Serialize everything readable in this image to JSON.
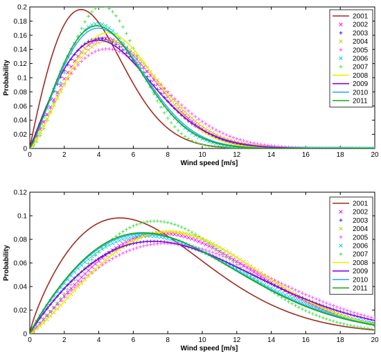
{
  "chart_data": [
    {
      "type": "line",
      "xlabel": "Wind speed [m/s]",
      "ylabel": "Probability",
      "xlim": [
        0,
        20
      ],
      "ylim": [
        0,
        0.2
      ],
      "xticks": [
        0,
        2,
        4,
        6,
        8,
        10,
        12,
        14,
        16,
        18,
        20
      ],
      "yticks": [
        0,
        0.02,
        0.04,
        0.06,
        0.08,
        0.1,
        0.12,
        0.14,
        0.16,
        0.18,
        0.2
      ],
      "legend_position": "top-right",
      "grid": false,
      "series": [
        {
          "name": "2001",
          "style": "line",
          "color": "#a0281e",
          "k": 1.95,
          "c": 4.3
        },
        {
          "name": "2002",
          "style": "marker-x",
          "color": "#ff00ff",
          "k": 2.15,
          "c": 5.8
        },
        {
          "name": "2003",
          "style": "marker-plus",
          "color": "#2222ee",
          "k": 2.05,
          "c": 5.6
        },
        {
          "name": "2004",
          "style": "marker-x",
          "color": "#cccc00",
          "k": 2.2,
          "c": 6.0
        },
        {
          "name": "2005",
          "style": "marker-plus",
          "color": "#ff44ff",
          "k": 2.05,
          "c": 6.2
        },
        {
          "name": "2006",
          "style": "marker-x",
          "color": "#00d0e0",
          "k": 2.2,
          "c": 5.2
        },
        {
          "name": "2007",
          "style": "marker-plus",
          "color": "#44dd44",
          "k": 2.55,
          "c": 5.1
        },
        {
          "name": "2008",
          "style": "line",
          "color": "#eeee00",
          "k": 2.3,
          "c": 5.8
        },
        {
          "name": "2009",
          "style": "line",
          "color": "#8800dd",
          "k": 2.0,
          "c": 5.6
        },
        {
          "name": "2010",
          "style": "line",
          "color": "#33aaff",
          "k": 2.15,
          "c": 5.3
        },
        {
          "name": "2011",
          "style": "line",
          "color": "#11aa11",
          "k": 2.15,
          "c": 5.2
        }
      ]
    },
    {
      "type": "line",
      "xlabel": "Wind speed [m/s]",
      "ylabel": "Probability",
      "xlim": [
        0,
        20
      ],
      "ylim": [
        0,
        0.12
      ],
      "xticks": [
        0,
        2,
        4,
        6,
        8,
        10,
        12,
        14,
        16,
        18,
        20
      ],
      "yticks": [
        0,
        0.02,
        0.04,
        0.06,
        0.08,
        0.1,
        0.12
      ],
      "legend_position": "top-right",
      "grid": false,
      "series": [
        {
          "name": "2001",
          "style": "line",
          "color": "#a0281e",
          "k": 1.8,
          "c": 8.2
        },
        {
          "name": "2002",
          "style": "marker-x",
          "color": "#ff00ff",
          "k": 2.1,
          "c": 10.4
        },
        {
          "name": "2003",
          "style": "marker-plus",
          "color": "#2222ee",
          "k": 1.9,
          "c": 10.6
        },
        {
          "name": "2004",
          "style": "marker-x",
          "color": "#cccc00",
          "k": 2.2,
          "c": 10.6
        },
        {
          "name": "2005",
          "style": "marker-plus",
          "color": "#ff44ff",
          "k": 2.0,
          "c": 11.2
        },
        {
          "name": "2006",
          "style": "marker-x",
          "color": "#00d0e0",
          "k": 1.9,
          "c": 10.0
        },
        {
          "name": "2007",
          "style": "marker-plus",
          "color": "#44dd44",
          "k": 2.2,
          "c": 9.6
        },
        {
          "name": "2008",
          "style": "line",
          "color": "#eeee00",
          "k": 2.2,
          "c": 10.6
        },
        {
          "name": "2009",
          "style": "line",
          "color": "#8800dd",
          "k": 1.9,
          "c": 10.6
        },
        {
          "name": "2010",
          "style": "line",
          "color": "#33aaff",
          "k": 1.9,
          "c": 9.8
        },
        {
          "name": "2011",
          "style": "line",
          "color": "#11aa11",
          "k": 1.9,
          "c": 9.7
        }
      ]
    }
  ]
}
